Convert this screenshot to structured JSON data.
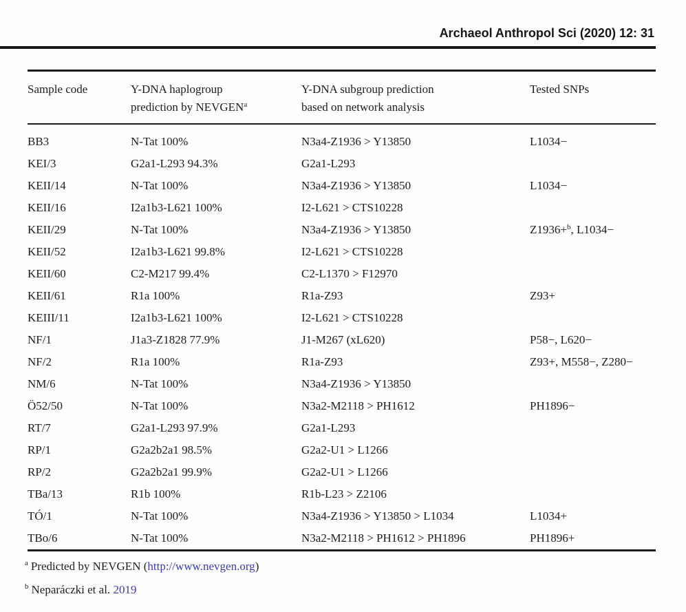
{
  "page": {
    "journal_header": "Archaeol Anthropol Sci (2020) 12: 31"
  },
  "colors": {
    "link_blue": "#3b3bb4",
    "text": "#1d1d1d",
    "rule": "#1b1b1b"
  },
  "table": {
    "columns": [
      {
        "line1": "Sample code",
        "line2": ""
      },
      {
        "line1": "Y-DNA haplogroup",
        "line2": "prediction by NEVGEN",
        "line2_sup": "a"
      },
      {
        "line1": "Y-DNA subgroup prediction",
        "line2": "based on network analysis"
      },
      {
        "line1": "Tested SNPs",
        "line2": ""
      }
    ],
    "rows": [
      {
        "code": "BB3",
        "nevgen": "N-Tat 100%",
        "network": "N3a4-Z1936 > Y13850",
        "snps": "L1034−"
      },
      {
        "code": "KEI/3",
        "nevgen": "G2a1-L293 94.3%",
        "network": "G2a1-L293",
        "snps": ""
      },
      {
        "code": "KEII/14",
        "nevgen": "N-Tat 100%",
        "network": "N3a4-Z1936 > Y13850",
        "snps": "L1034−"
      },
      {
        "code": "KEII/16",
        "nevgen": "I2a1b3-L621 100%",
        "network": "I2-L621 > CTS10228",
        "snps": ""
      },
      {
        "code": "KEII/29",
        "nevgen": "N-Tat 100%",
        "network": "N3a4-Z1936 > Y13850",
        "snps": "Z1936+^{b}, L1034−"
      },
      {
        "code": "KEII/52",
        "nevgen": "I2a1b3-L621 99.8%",
        "network": "I2-L621 > CTS10228",
        "snps": ""
      },
      {
        "code": "KEII/60",
        "nevgen": "C2-M217 99.4%",
        "network": "C2-L1370 > F12970",
        "snps": ""
      },
      {
        "code": "KEII/61",
        "nevgen": "R1a 100%",
        "network": "R1a-Z93",
        "snps": "Z93+"
      },
      {
        "code": "KEIII/11",
        "nevgen": "I2a1b3-L621 100%",
        "network": "I2-L621 > CTS10228",
        "snps": ""
      },
      {
        "code": "NF/1",
        "nevgen": "J1a3-Z1828 77.9%",
        "network": "J1-M267 (xL620)",
        "snps": "P58−, L620−"
      },
      {
        "code": "NF/2",
        "nevgen": "R1a 100%",
        "network": "R1a-Z93",
        "snps": "Z93+, M558−, Z280−"
      },
      {
        "code": "NM/6",
        "nevgen": "N-Tat 100%",
        "network": "N3a4-Z1936 > Y13850",
        "snps": ""
      },
      {
        "code": "Ö52/50",
        "nevgen": "N-Tat 100%",
        "network": "N3a2-M2118 > PH1612",
        "snps": "PH1896−"
      },
      {
        "code": "RT/7",
        "nevgen": "G2a1-L293 97.9%",
        "network": "G2a1-L293",
        "snps": ""
      },
      {
        "code": "RP/1",
        "nevgen": "G2a2b2a1 98.5%",
        "network": "G2a2-U1 > L1266",
        "snps": ""
      },
      {
        "code": "RP/2",
        "nevgen": "G2a2b2a1 99.9%",
        "network": "G2a2-U1 > L1266",
        "snps": ""
      },
      {
        "code": "TBa/13",
        "nevgen": "R1b 100%",
        "network": "R1b-L23 > Z2106",
        "snps": ""
      },
      {
        "code": "TÓ/1",
        "nevgen": "N-Tat 100%",
        "network": "N3a4-Z1936 > Y13850 > L1034",
        "snps": "L1034+"
      },
      {
        "code": "TBo/6",
        "nevgen": "N-Tat 100%",
        "network": "N3a2-M2118 > PH1612 > PH1896",
        "snps": "PH1896+"
      }
    ]
  },
  "footnotes": [
    {
      "sup": "a",
      "pre": "Predicted by NEVGEN (",
      "link": "http://www.nevgen.org",
      "post": ")"
    },
    {
      "sup": "b",
      "pre": "Neparáczki et al. ",
      "link": "2019",
      "post": ""
    }
  ]
}
